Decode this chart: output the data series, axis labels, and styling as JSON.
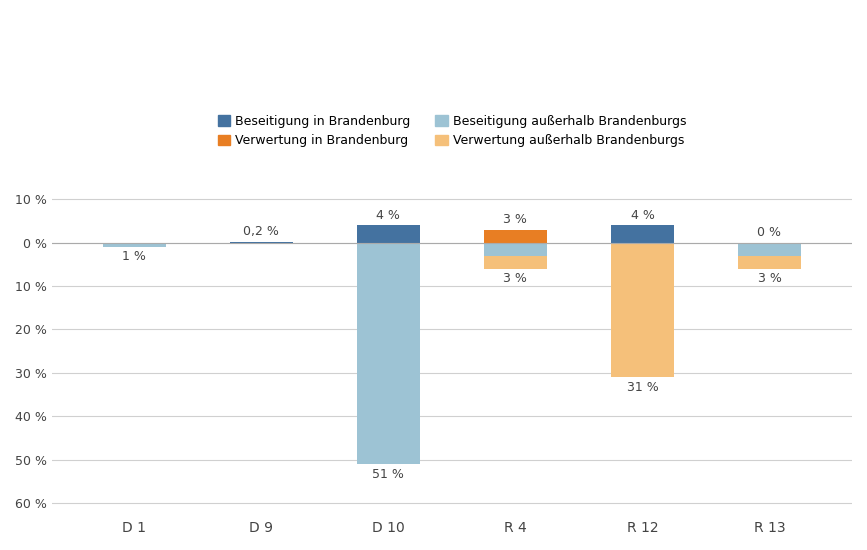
{
  "categories": [
    "D 1",
    "D 9",
    "D 10",
    "R 4",
    "R 12",
    "R 13"
  ],
  "beseitigung_in_bb": [
    0,
    0.2,
    4,
    0,
    4,
    0
  ],
  "beseitigung_ausserhalb": [
    -1,
    -0.0,
    -51,
    -3,
    0,
    -3
  ],
  "verwertung_in_bb": [
    0,
    0,
    0,
    3,
    0,
    0
  ],
  "verwertung_ausserhalb": [
    0,
    0,
    0,
    -3,
    -31,
    -3
  ],
  "labels_bes_in": [
    "",
    "0,2 %",
    "4 %",
    "",
    "4 %",
    "0 %"
  ],
  "labels_bes_out": [
    "1 %",
    "",
    "51 %",
    "",
    "",
    ""
  ],
  "labels_verw_in": [
    "",
    "",
    "",
    "3 %",
    "",
    ""
  ],
  "labels_verw_out": [
    "",
    "",
    "",
    "3 %",
    "31 %",
    "3 %"
  ],
  "color_bes_in": "#4472A0",
  "color_bes_out": "#9DC3D4",
  "color_verw_in": "#E87E23",
  "color_verw_out": "#F5C07A",
  "legend_labels": [
    "Beseitigung in Brandenburg",
    "Verwertung in Brandenburg",
    "Beseitigung außerhalb Brandenburgs",
    "Verwertung außerhalb Brandenburgs"
  ],
  "yticks": [
    10,
    0,
    -10,
    -20,
    -30,
    -40,
    -50,
    -60
  ],
  "ytick_labels": [
    "10 %",
    "0 %",
    "10 %",
    "20 %",
    "30 %",
    "40 %",
    "50 %",
    "60 %"
  ],
  "ylim": [
    -63,
    13
  ],
  "background_color": "#ffffff",
  "bar_width": 0.5
}
